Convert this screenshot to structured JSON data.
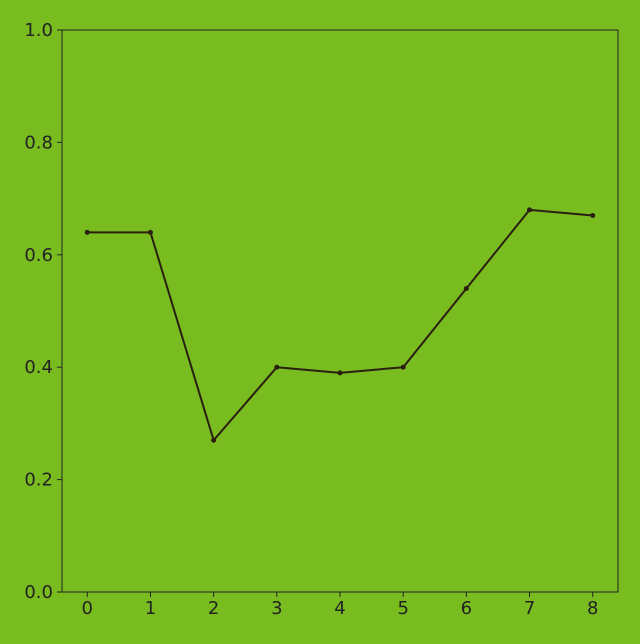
{
  "chart_data": {
    "type": "line",
    "title": "",
    "xlabel": "",
    "ylabel": "",
    "x": [
      0,
      1,
      2,
      3,
      4,
      5,
      6,
      7,
      8
    ],
    "series": [
      {
        "values": [
          0.64,
          0.64,
          0.27,
          0.4,
          0.39,
          0.4,
          0.54,
          0.68,
          0.67
        ]
      }
    ],
    "xlim": [
      -0.4,
      8.4
    ],
    "ylim": [
      0.0,
      1.0
    ],
    "xticks": [
      0,
      1,
      2,
      3,
      4,
      5,
      6,
      7,
      8
    ],
    "xtick_labels": [
      "0",
      "1",
      "2",
      "3",
      "4",
      "5",
      "6",
      "7",
      "8"
    ],
    "yticks": [
      0.0,
      0.2,
      0.4,
      0.6,
      0.8,
      1.0
    ],
    "ytick_labels": [
      "0.0",
      "0.2",
      "0.4",
      "0.6",
      "0.8",
      "1.0"
    ],
    "grid": false,
    "colors": {
      "background": "#78bc1f",
      "line": "#2a1f10",
      "axes": "#222222"
    }
  }
}
